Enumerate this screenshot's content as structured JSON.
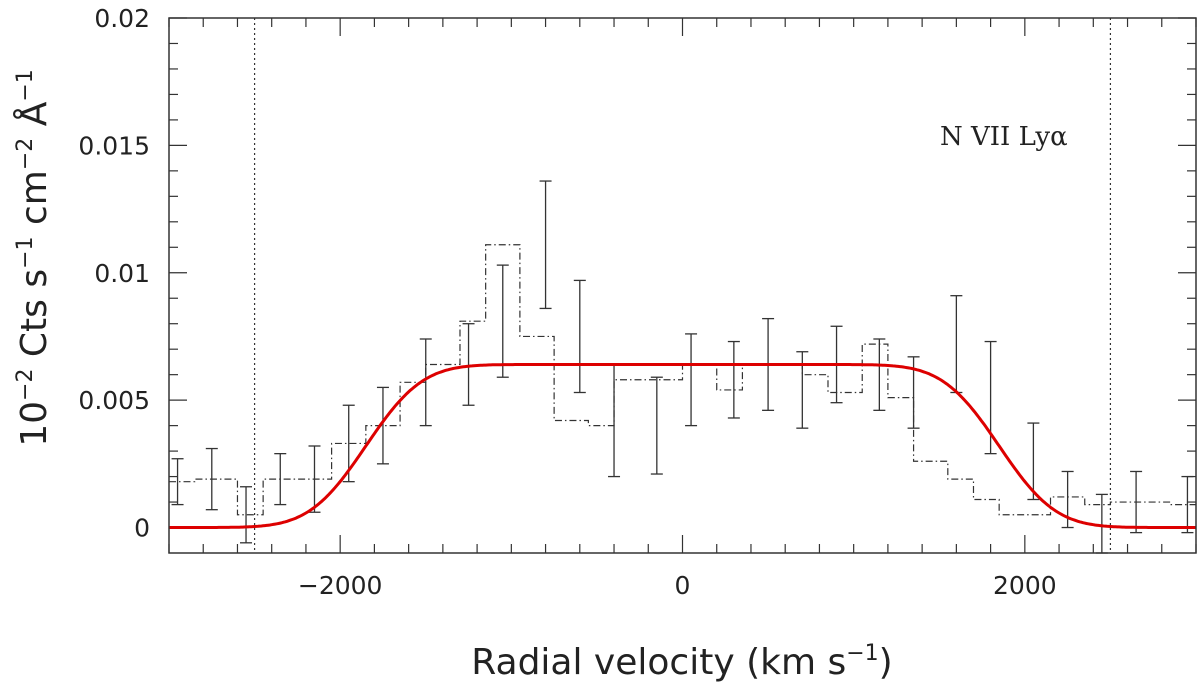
{
  "chart_data": {
    "type": "line",
    "xlabel": {
      "main": "Radial velocity (km s",
      "sup": "−1",
      "close": ")"
    },
    "ylabel": {
      "p1": "10",
      "s1": "−2",
      "p2": " Cts s",
      "s2": "−1",
      "p3": " cm",
      "s3": "−2",
      "p4": " Å",
      "s4": "−1"
    },
    "annotation": "N VII Lyα",
    "xlim": [
      -3000,
      3000
    ],
    "ylim": [
      -0.001,
      0.02
    ],
    "x_ticks": [
      {
        "v": -2000,
        "label": "−2000"
      },
      {
        "v": 0,
        "label": "0"
      },
      {
        "v": 2000,
        "label": "2000"
      }
    ],
    "y_ticks": [
      {
        "v": 0,
        "label": "0"
      },
      {
        "v": 0.005,
        "label": "0.005"
      },
      {
        "v": 0.01,
        "label": "0.01"
      },
      {
        "v": 0.015,
        "label": "0.015"
      },
      {
        "v": 0.02,
        "label": "0.02"
      }
    ],
    "x_minor_step": 200,
    "y_minor_step": 0.001,
    "vlines": [
      -2500,
      2500
    ],
    "colors": {
      "fit": "#dd0000",
      "data": "#333333",
      "frame": "#333333"
    },
    "data_bins": {
      "edges": [
        -3000,
        -2850,
        -2600,
        -2450,
        -2250,
        -2050,
        -1850,
        -1650,
        -1500,
        -1300,
        -1150,
        -950,
        -750,
        -550,
        -400,
        -200,
        0,
        200,
        350,
        550,
        700,
        850,
        1050,
        1200,
        1350,
        1550,
        1700,
        1850,
        2050,
        2150,
        2350,
        2500,
        2700,
        2850,
        3000
      ],
      "values": [
        0.0018,
        0.0019,
        0.0005,
        0.0019,
        0.0019,
        0.0033,
        0.004,
        0.0057,
        0.0064,
        0.0081,
        0.0111,
        0.0075,
        0.0042,
        0.004,
        0.0058,
        0.0058,
        0.0064,
        0.0054,
        0.0064,
        0.0064,
        0.006,
        0.0053,
        0.0072,
        0.0051,
        0.0026,
        0.0019,
        0.0011,
        0.0005,
        0.0005,
        0.0012,
        0.0009,
        0.001,
        0.001,
        0.0009
      ]
    },
    "error_bars": [
      {
        "x": -2950,
        "y": 0.0018,
        "err": 0.0009
      },
      {
        "x": -2750,
        "y": 0.0019,
        "err": 0.0012
      },
      {
        "x": -2550,
        "y": 0.0005,
        "err": 0.0011
      },
      {
        "x": -2350,
        "y": 0.0019,
        "err": 0.001
      },
      {
        "x": -2150,
        "y": 0.0019,
        "err": 0.0013
      },
      {
        "x": -1950,
        "y": 0.0033,
        "err": 0.0015
      },
      {
        "x": -1750,
        "y": 0.004,
        "err": 0.0015
      },
      {
        "x": -1500,
        "y": 0.0057,
        "err": 0.0017
      },
      {
        "x": -1250,
        "y": 0.0064,
        "err": 0.0016
      },
      {
        "x": -1050,
        "y": 0.0081,
        "err": 0.0022
      },
      {
        "x": -800,
        "y": 0.0111,
        "err": 0.0025
      },
      {
        "x": -600,
        "y": 0.0075,
        "err": 0.0022
      },
      {
        "x": -400,
        "y": 0.0042,
        "err": 0.0022
      },
      {
        "x": -150,
        "y": 0.004,
        "err": 0.0019
      },
      {
        "x": 50,
        "y": 0.0058,
        "err": 0.0018
      },
      {
        "x": 300,
        "y": 0.0058,
        "err": 0.0015
      },
      {
        "x": 500,
        "y": 0.0064,
        "err": 0.0018
      },
      {
        "x": 700,
        "y": 0.0054,
        "err": 0.0015
      },
      {
        "x": 900,
        "y": 0.0064,
        "err": 0.0015
      },
      {
        "x": 1150,
        "y": 0.006,
        "err": 0.0014
      },
      {
        "x": 1350,
        "y": 0.0053,
        "err": 0.0014
      },
      {
        "x": 1600,
        "y": 0.0072,
        "err": 0.0019
      },
      {
        "x": 1800,
        "y": 0.0051,
        "err": 0.0022
      },
      {
        "x": 2050,
        "y": 0.0026,
        "err": 0.0015
      },
      {
        "x": 2250,
        "y": 0.0011,
        "err": 0.0011
      },
      {
        "x": 2450,
        "y": 0.0001,
        "err": 0.0012
      },
      {
        "x": 2650,
        "y": 0.001,
        "err": 0.0012
      },
      {
        "x": 2950,
        "y": 0.0009,
        "err": 0.0011
      }
    ],
    "fit": {
      "amplitude": 0.0064,
      "center": 0,
      "half_width": 1850,
      "edge_sigma": 260
    }
  }
}
